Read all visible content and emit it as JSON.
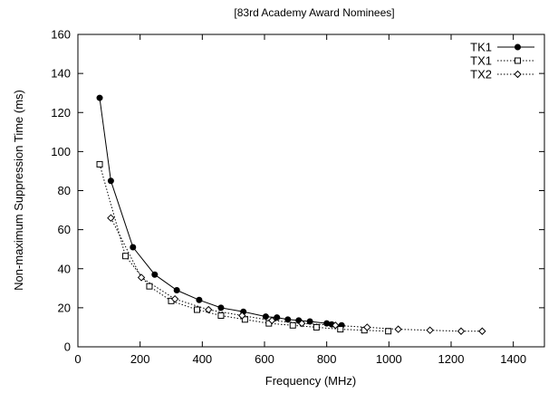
{
  "chart_data": {
    "type": "line",
    "title": "[83rd Academy Award Nominees]",
    "xlabel": "Frequency (MHz)",
    "ylabel": "Non-maximum Suppression Time (ms)",
    "xlim": [
      0,
      1500
    ],
    "ylim": [
      0,
      160
    ],
    "xticks": [
      0,
      200,
      400,
      600,
      800,
      1000,
      1200,
      1400
    ],
    "yticks": [
      0,
      20,
      40,
      60,
      80,
      100,
      120,
      140,
      160
    ],
    "grid": false,
    "legend_position": "top-right",
    "series": [
      {
        "name": "TK1",
        "line_style": "solid",
        "marker": "filled-circle",
        "x": [
          70,
          106,
          177,
          247,
          318,
          390,
          460,
          532,
          604,
          640,
          675,
          710,
          746,
          800,
          816,
          848
        ],
        "y": [
          127.5,
          85,
          51,
          37,
          29,
          24,
          20,
          18,
          15.5,
          15,
          14,
          13.5,
          13,
          12,
          11.5,
          11
        ]
      },
      {
        "name": "TX1",
        "line_style": "dotted",
        "marker": "open-square",
        "x": [
          70,
          153,
          230,
          300,
          383,
          460,
          537,
          614,
          691,
          767,
          844,
          921,
          998
        ],
        "y": [
          93.5,
          46.5,
          31,
          23.5,
          19,
          16,
          14,
          12,
          11,
          10,
          9,
          8.5,
          8
        ]
      },
      {
        "name": "TX2",
        "line_style": "dotted",
        "marker": "open-diamond",
        "x": [
          106,
          204,
          312,
          420,
          528,
          624,
          720,
          828,
          930,
          1030,
          1132,
          1232,
          1300
        ],
        "y": [
          66,
          35.5,
          24.5,
          19,
          16,
          13.5,
          12,
          11,
          10,
          9,
          8.5,
          8,
          8
        ]
      }
    ]
  }
}
